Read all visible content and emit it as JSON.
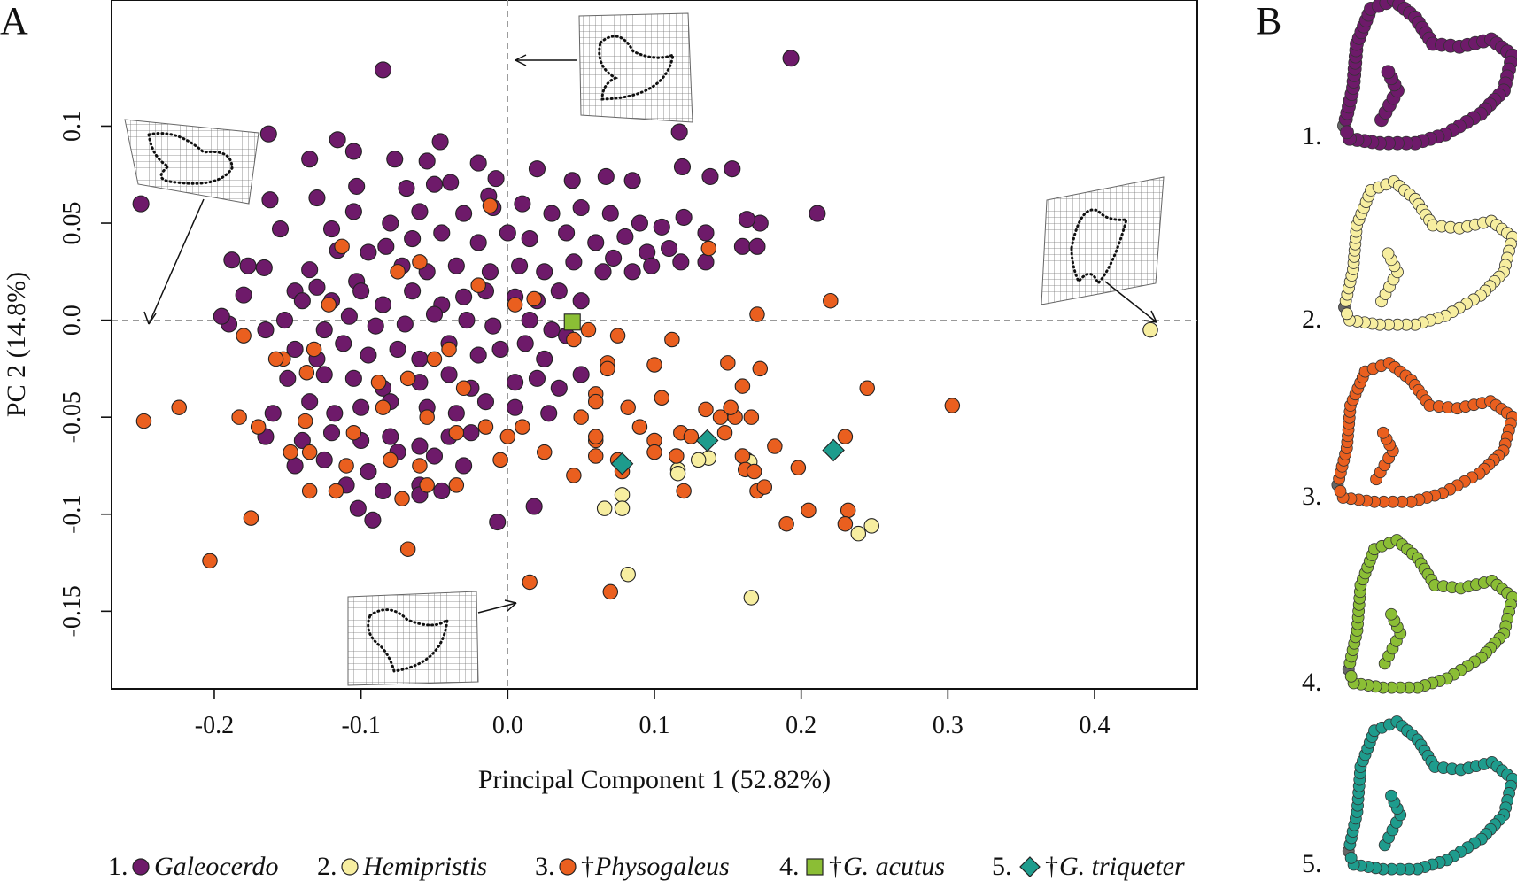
{
  "panels": {
    "a": "A",
    "b": "B"
  },
  "chart_data": {
    "type": "scatter",
    "xlabel": "Principal Component 1 (52.82%)",
    "ylabel": "PC 2 (14.8%)",
    "xlim": [
      -0.27,
      0.47
    ],
    "ylim": [
      -0.19,
      0.165
    ],
    "xticks": [
      "-0.2",
      "-0.1",
      "0.0",
      "0.1",
      "0.2",
      "0.3",
      "0.4"
    ],
    "xtick_values": [
      -0.2,
      -0.1,
      0.0,
      0.1,
      0.2,
      0.3,
      0.4
    ],
    "yticks": [
      "-0.15",
      "-0.1",
      "-0.05",
      "0.0",
      "0.05",
      "0.1"
    ],
    "ytick_values": [
      -0.15,
      -0.1,
      -0.05,
      0.0,
      0.05,
      0.1
    ],
    "reference_lines": {
      "x": 0.0,
      "y": 0.0,
      "style": "dashed"
    },
    "series": [
      {
        "name": "Galeocerdo",
        "legend_number": "1.",
        "marker": "circle",
        "color": "#6e1a6a",
        "points": [
          [
            -0.085,
            0.129
          ],
          [
            0.193,
            0.135
          ],
          [
            -0.25,
            0.06
          ],
          [
            -0.163,
            0.096
          ],
          [
            -0.162,
            0.062
          ],
          [
            -0.155,
            0.047
          ],
          [
            -0.116,
            0.093
          ],
          [
            -0.135,
            0.083
          ],
          [
            -0.103,
            0.069
          ],
          [
            -0.13,
            0.063
          ],
          [
            -0.105,
            0.087
          ],
          [
            -0.046,
            0.092
          ],
          [
            -0.077,
            0.083
          ],
          [
            -0.055,
            0.082
          ],
          [
            -0.02,
            0.081
          ],
          [
            -0.069,
            0.068
          ],
          [
            -0.039,
            0.071
          ],
          [
            -0.008,
            0.073
          ],
          [
            -0.013,
            0.064
          ],
          [
            -0.05,
            0.07
          ],
          [
            0.02,
            0.078
          ],
          [
            0.044,
            0.072
          ],
          [
            0.067,
            0.074
          ],
          [
            0.085,
            0.072
          ],
          [
            0.117,
            0.097
          ],
          [
            0.119,
            0.079
          ],
          [
            0.138,
            0.074
          ],
          [
            0.153,
            0.078
          ],
          [
            0.211,
            0.055
          ],
          [
            -0.105,
            0.056
          ],
          [
            -0.12,
            0.047
          ],
          [
            -0.08,
            0.05
          ],
          [
            -0.083,
            0.038
          ],
          [
            -0.06,
            0.056
          ],
          [
            -0.03,
            0.055
          ],
          [
            -0.01,
            0.058
          ],
          [
            0.01,
            0.06
          ],
          [
            0.03,
            0.055
          ],
          [
            0.05,
            0.058
          ],
          [
            0.07,
            0.055
          ],
          [
            0.09,
            0.05
          ],
          [
            0.105,
            0.048
          ],
          [
            0.12,
            0.053
          ],
          [
            0.135,
            0.045
          ],
          [
            0.11,
            0.037
          ],
          [
            -0.095,
            0.035
          ],
          [
            -0.065,
            0.042
          ],
          [
            -0.045,
            0.045
          ],
          [
            -0.02,
            0.04
          ],
          [
            0.0,
            0.045
          ],
          [
            0.015,
            0.042
          ],
          [
            0.04,
            0.045
          ],
          [
            0.06,
            0.04
          ],
          [
            0.08,
            0.043
          ],
          [
            0.095,
            0.035
          ],
          [
            0.118,
            0.03
          ],
          [
            0.135,
            0.03
          ],
          [
            0.16,
            0.038
          ],
          [
            0.17,
            0.038
          ],
          [
            0.172,
            0.05
          ],
          [
            0.163,
            0.052
          ],
          [
            0.098,
            0.028
          ],
          [
            0.085,
            0.025
          ],
          [
            -0.188,
            0.031
          ],
          [
            -0.177,
            0.028
          ],
          [
            -0.166,
            0.027
          ],
          [
            -0.135,
            0.026
          ],
          [
            -0.116,
            0.036
          ],
          [
            -0.103,
            0.02
          ],
          [
            -0.072,
            0.028
          ],
          [
            -0.055,
            0.025
          ],
          [
            -0.035,
            0.028
          ],
          [
            -0.012,
            0.025
          ],
          [
            0.008,
            0.028
          ],
          [
            0.025,
            0.025
          ],
          [
            0.045,
            0.03
          ],
          [
            0.065,
            0.025
          ],
          [
            0.072,
            0.032
          ],
          [
            -0.18,
            0.013
          ],
          [
            -0.145,
            0.015
          ],
          [
            -0.13,
            0.017
          ],
          [
            -0.14,
            0.01
          ],
          [
            -0.12,
            0.01
          ],
          [
            -0.1,
            0.015
          ],
          [
            -0.085,
            0.008
          ],
          [
            -0.065,
            0.015
          ],
          [
            -0.045,
            0.008
          ],
          [
            -0.03,
            0.012
          ],
          [
            -0.015,
            0.015
          ],
          [
            0.005,
            0.012
          ],
          [
            0.02,
            0.01
          ],
          [
            0.035,
            0.015
          ],
          [
            0.05,
            0.01
          ],
          [
            -0.19,
            -0.002
          ],
          [
            -0.195,
            0.002
          ],
          [
            -0.165,
            -0.005
          ],
          [
            -0.152,
            0.0
          ],
          [
            -0.125,
            -0.005
          ],
          [
            -0.108,
            0.002
          ],
          [
            -0.09,
            -0.003
          ],
          [
            -0.07,
            -0.002
          ],
          [
            -0.05,
            0.003
          ],
          [
            -0.028,
            0.0
          ],
          [
            -0.01,
            -0.003
          ],
          [
            0.015,
            0.0
          ],
          [
            0.03,
            -0.005
          ],
          [
            0.04,
            -0.008
          ],
          [
            -0.145,
            -0.015
          ],
          [
            -0.13,
            -0.02
          ],
          [
            -0.112,
            -0.012
          ],
          [
            -0.095,
            -0.018
          ],
          [
            -0.075,
            -0.015
          ],
          [
            -0.06,
            -0.02
          ],
          [
            -0.04,
            -0.012
          ],
          [
            -0.02,
            -0.018
          ],
          [
            -0.005,
            -0.015
          ],
          [
            0.012,
            -0.012
          ],
          [
            0.025,
            -0.02
          ],
          [
            -0.15,
            -0.03
          ],
          [
            -0.125,
            -0.028
          ],
          [
            -0.105,
            -0.03
          ],
          [
            -0.085,
            -0.035
          ],
          [
            -0.06,
            -0.032
          ],
          [
            -0.04,
            -0.028
          ],
          [
            -0.025,
            -0.035
          ],
          [
            0.005,
            -0.032
          ],
          [
            0.02,
            -0.03
          ],
          [
            0.035,
            -0.035
          ],
          [
            0.05,
            -0.028
          ],
          [
            -0.16,
            -0.048
          ],
          [
            -0.135,
            -0.042
          ],
          [
            -0.118,
            -0.048
          ],
          [
            -0.1,
            -0.045
          ],
          [
            -0.08,
            -0.042
          ],
          [
            -0.055,
            -0.045
          ],
          [
            -0.035,
            -0.048
          ],
          [
            -0.015,
            -0.042
          ],
          [
            0.005,
            -0.045
          ],
          [
            0.028,
            -0.048
          ],
          [
            -0.165,
            -0.06
          ],
          [
            -0.14,
            -0.062
          ],
          [
            -0.12,
            -0.058
          ],
          [
            -0.1,
            -0.062
          ],
          [
            -0.08,
            -0.06
          ],
          [
            -0.06,
            -0.065
          ],
          [
            -0.04,
            -0.06
          ],
          [
            -0.025,
            -0.058
          ],
          [
            -0.145,
            -0.075
          ],
          [
            -0.125,
            -0.072
          ],
          [
            -0.095,
            -0.078
          ],
          [
            -0.075,
            -0.068
          ],
          [
            -0.05,
            -0.07
          ],
          [
            -0.03,
            -0.075
          ],
          [
            -0.11,
            -0.085
          ],
          [
            -0.085,
            -0.088
          ],
          [
            -0.06,
            -0.085
          ],
          [
            -0.06,
            -0.09
          ],
          [
            -0.102,
            -0.097
          ],
          [
            -0.092,
            -0.103
          ],
          [
            -0.045,
            -0.088
          ],
          [
            0.018,
            -0.096
          ],
          [
            -0.007,
            -0.104
          ]
        ]
      },
      {
        "name": "Hemipristis",
        "legend_number": "2.",
        "marker": "circle",
        "color": "#f7eea0",
        "points": [
          [
            0.438,
            -0.005
          ],
          [
            0.137,
            -0.071
          ],
          [
            0.13,
            -0.072
          ],
          [
            0.163,
            -0.072
          ],
          [
            0.165,
            -0.073
          ],
          [
            0.116,
            -0.077
          ],
          [
            0.116,
            -0.079
          ],
          [
            0.078,
            -0.09
          ],
          [
            0.066,
            -0.097
          ],
          [
            0.078,
            -0.097
          ],
          [
            0.239,
            -0.11
          ],
          [
            0.248,
            -0.106
          ],
          [
            0.082,
            -0.131
          ],
          [
            0.166,
            -0.143
          ]
        ]
      },
      {
        "name": "Physogaleus",
        "legend_number": "3.",
        "marker": "circle",
        "color": "#ea5f1f",
        "points": [
          [
            -0.113,
            0.038
          ],
          [
            -0.075,
            0.025
          ],
          [
            -0.012,
            0.059
          ],
          [
            -0.06,
            0.03
          ],
          [
            -0.02,
            0.018
          ],
          [
            0.005,
            0.008
          ],
          [
            0.018,
            0.011
          ],
          [
            0.137,
            0.037
          ],
          [
            0.17,
            0.003
          ],
          [
            0.22,
            0.01
          ],
          [
            -0.122,
            0.008
          ],
          [
            -0.153,
            -0.02
          ],
          [
            -0.18,
            -0.008
          ],
          [
            -0.132,
            -0.015
          ],
          [
            -0.05,
            -0.02
          ],
          [
            -0.04,
            -0.015
          ],
          [
            0.045,
            -0.01
          ],
          [
            0.055,
            -0.005
          ],
          [
            0.075,
            -0.008
          ],
          [
            0.112,
            -0.01
          ],
          [
            0.068,
            -0.022
          ],
          [
            0.068,
            -0.025
          ],
          [
            0.1,
            -0.023
          ],
          [
            0.15,
            -0.022
          ],
          [
            0.172,
            -0.025
          ],
          [
            -0.158,
            -0.02
          ],
          [
            -0.137,
            -0.027
          ],
          [
            -0.088,
            -0.032
          ],
          [
            -0.068,
            -0.03
          ],
          [
            -0.03,
            -0.035
          ],
          [
            0.06,
            -0.038
          ],
          [
            0.105,
            -0.04
          ],
          [
            0.16,
            -0.034
          ],
          [
            0.245,
            -0.035
          ],
          [
            0.303,
            -0.044
          ],
          [
            -0.248,
            -0.052
          ],
          [
            -0.224,
            -0.045
          ],
          [
            -0.183,
            -0.05
          ],
          [
            -0.17,
            -0.055
          ],
          [
            -0.138,
            -0.052
          ],
          [
            -0.105,
            -0.058
          ],
          [
            -0.085,
            -0.045
          ],
          [
            -0.055,
            -0.05
          ],
          [
            -0.035,
            -0.058
          ],
          [
            -0.015,
            -0.055
          ],
          [
            0.0,
            -0.06
          ],
          [
            0.01,
            -0.055
          ],
          [
            0.05,
            -0.05
          ],
          [
            0.06,
            -0.042
          ],
          [
            0.082,
            -0.045
          ],
          [
            0.09,
            -0.055
          ],
          [
            0.135,
            -0.046
          ],
          [
            0.145,
            -0.05
          ],
          [
            0.155,
            -0.05
          ],
          [
            0.152,
            -0.045
          ],
          [
            0.166,
            -0.05
          ],
          [
            0.06,
            -0.062
          ],
          [
            0.06,
            -0.06
          ],
          [
            0.1,
            -0.062
          ],
          [
            0.118,
            -0.058
          ],
          [
            0.125,
            -0.06
          ],
          [
            0.148,
            -0.058
          ],
          [
            0.182,
            -0.065
          ],
          [
            0.23,
            -0.06
          ],
          [
            -0.148,
            -0.068
          ],
          [
            -0.135,
            -0.068
          ],
          [
            -0.11,
            -0.075
          ],
          [
            -0.08,
            -0.072
          ],
          [
            -0.06,
            -0.075
          ],
          [
            -0.005,
            -0.072
          ],
          [
            0.025,
            -0.068
          ],
          [
            0.06,
            -0.07
          ],
          [
            0.075,
            -0.072
          ],
          [
            0.1,
            -0.068
          ],
          [
            0.115,
            -0.07
          ],
          [
            0.16,
            -0.07
          ],
          [
            0.162,
            -0.077
          ],
          [
            0.168,
            -0.078
          ],
          [
            0.198,
            -0.076
          ],
          [
            0.078,
            -0.078
          ],
          [
            -0.135,
            -0.088
          ],
          [
            -0.117,
            -0.088
          ],
          [
            -0.072,
            -0.092
          ],
          [
            -0.055,
            -0.085
          ],
          [
            -0.035,
            -0.085
          ],
          [
            0.045,
            -0.08
          ],
          [
            0.12,
            -0.088
          ],
          [
            0.17,
            -0.088
          ],
          [
            0.175,
            -0.086
          ],
          [
            -0.175,
            -0.102
          ],
          [
            0.19,
            -0.105
          ],
          [
            0.205,
            -0.098
          ],
          [
            0.232,
            -0.098
          ],
          [
            0.23,
            -0.105
          ],
          [
            -0.068,
            -0.118
          ],
          [
            -0.203,
            -0.124
          ],
          [
            0.015,
            -0.135
          ],
          [
            0.07,
            -0.14
          ]
        ]
      },
      {
        "name": "G. acutus",
        "legend_number": "4.",
        "marker": "square",
        "color": "#8bbe35",
        "points": [
          [
            0.044,
            -0.001
          ]
        ]
      },
      {
        "name": "G. triqueter",
        "legend_number": "5.",
        "marker": "diamond",
        "color": "#1e9c8d",
        "points": [
          [
            0.136,
            -0.062
          ],
          [
            0.078,
            -0.074
          ],
          [
            0.222,
            -0.067
          ]
        ]
      }
    ],
    "legend": {
      "placement": "bottom",
      "items": [
        {
          "number": "1.",
          "dagger": "",
          "label": "Galeocerdo"
        },
        {
          "number": "2.",
          "dagger": "",
          "label": "Hemipristis"
        },
        {
          "number": "3.",
          "dagger": "†",
          "label": "Physogaleus"
        },
        {
          "number": "4.",
          "dagger": "†",
          "label": "G. acutus"
        },
        {
          "number": "5.",
          "dagger": "†",
          "label": "G. triqueter"
        }
      ]
    },
    "shape_numbers": [
      "1.",
      "2.",
      "3.",
      "4.",
      "5."
    ]
  }
}
